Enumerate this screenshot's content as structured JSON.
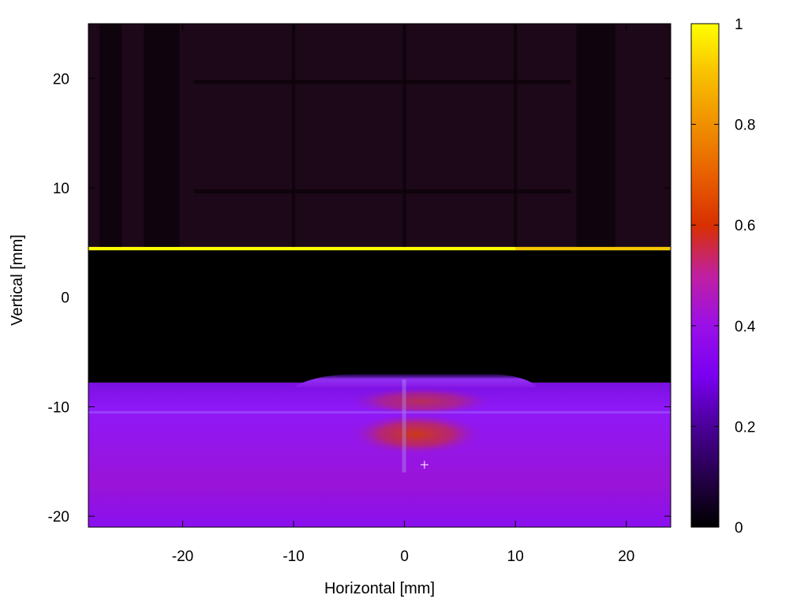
{
  "chart_data": {
    "type": "heatmap",
    "title": "",
    "xlabel": "Horizontal [mm]",
    "ylabel": "Vertical [mm]",
    "xlim": [
      -28.5,
      24
    ],
    "ylim": [
      -21,
      25
    ],
    "xticks": [
      -20,
      -10,
      0,
      10,
      20
    ],
    "yticks": [
      -20,
      -10,
      0,
      10,
      20
    ],
    "colorbar": {
      "range": [
        0,
        1
      ],
      "ticks": [
        0,
        0.2,
        0.4,
        0.6,
        0.8,
        1
      ],
      "colormap": [
        "#000000",
        "#25004a",
        "#6500c8",
        "#8e10ff",
        "#b020a8",
        "#d02800",
        "#f08000",
        "#ffd000",
        "#ffff00"
      ]
    },
    "regions": [
      {
        "name": "upper background",
        "y_range": [
          4.6,
          25
        ],
        "value": 0.04
      },
      {
        "name": "bright edge line",
        "y_range": [
          4.3,
          4.6
        ],
        "value": 1.0
      },
      {
        "name": "dark gap",
        "y_range": [
          -7.8,
          4.3
        ],
        "value": 0.0
      },
      {
        "name": "lower band",
        "y_range": [
          -21,
          -7.8
        ],
        "value": 0.35
      },
      {
        "name": "hot spot",
        "x_range": [
          -5,
          8
        ],
        "y_range": [
          -14,
          -8.5
        ],
        "value": 0.6
      }
    ],
    "marker": {
      "x": 1.8,
      "y": -15.3,
      "symbol": "+"
    }
  }
}
